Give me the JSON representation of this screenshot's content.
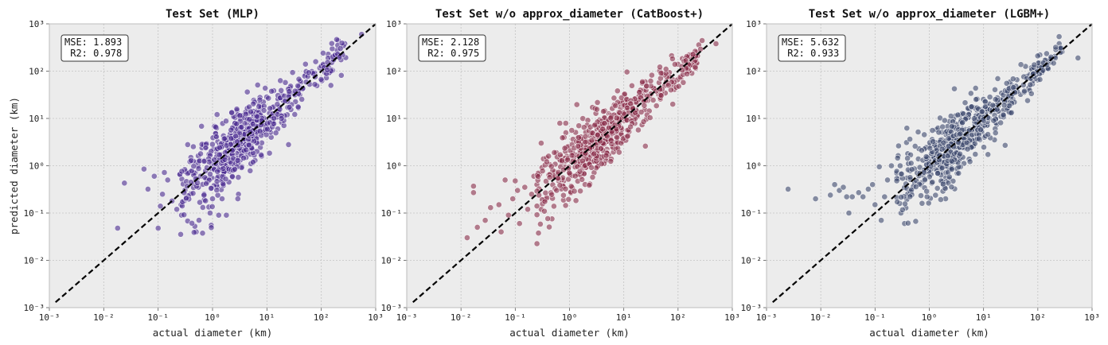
{
  "chart_data": [
    {
      "type": "scatter",
      "title": "Test Set (MLP)",
      "xlabel": "actual diameter (km)",
      "ylabel": "predicted diameter (km)",
      "xscale": "log",
      "yscale": "log",
      "xlim": [
        0.001,
        1000
      ],
      "ylim": [
        0.001,
        1000
      ],
      "grid": true,
      "color": "#4b2c91",
      "stats_box": [
        "MSE: 1.893",
        " R2: 0.978"
      ],
      "diagonal": {
        "x": [
          0.0013,
          1000
        ],
        "y": [
          0.0013,
          1000
        ],
        "style": "dashed",
        "color": "#000000"
      },
      "series": [
        {
          "outliers": [
            {
              "x": 0.018,
              "y": 0.048
            },
            {
              "x": 0.024,
              "y": 0.43
            },
            {
              "x": 0.055,
              "y": 0.85
            },
            {
              "x": 0.065,
              "y": 0.32
            },
            {
              "x": 0.085,
              "y": 0.6
            },
            {
              "x": 0.1,
              "y": 0.048
            },
            {
              "x": 0.11,
              "y": 0.14
            },
            {
              "x": 0.12,
              "y": 0.25
            },
            {
              "x": 0.15,
              "y": 0.5
            },
            {
              "x": 0.18,
              "y": 0.18
            },
            {
              "x": 0.22,
              "y": 0.12
            },
            {
              "x": 0.27,
              "y": 0.09
            },
            {
              "x": 0.3,
              "y": 0.18
            },
            {
              "x": 0.35,
              "y": 2.8
            },
            {
              "x": 0.4,
              "y": 1.5
            },
            {
              "x": 0.5,
              "y": 0.04
            },
            {
              "x": 0.55,
              "y": 0.35
            },
            {
              "x": 0.7,
              "y": 0.25
            },
            {
              "x": 0.9,
              "y": 0.1
            },
            {
              "x": 1.0,
              "y": 0.2
            },
            {
              "x": 1.3,
              "y": 0.09
            },
            {
              "x": 1.5,
              "y": 0.2
            },
            {
              "x": 1.8,
              "y": 0.09
            },
            {
              "x": 2.0,
              "y": 0.45
            },
            {
              "x": 1.2,
              "y": 0.55
            },
            {
              "x": 0.8,
              "y": 0.45
            },
            {
              "x": 25,
              "y": 2.8
            },
            {
              "x": 150,
              "y": 50
            },
            {
              "x": 550,
              "y": 600
            },
            {
              "x": 12,
              "y": 4
            },
            {
              "x": 8,
              "y": 1.6
            },
            {
              "x": 3,
              "y": 0.25
            },
            {
              "x": 0.25,
              "y": 0.65
            },
            {
              "x": 0.32,
              "y": 0.75
            },
            {
              "x": 0.13,
              "y": 0.72
            }
          ]
        }
      ]
    },
    {
      "type": "scatter",
      "title": "Test Set w/o approx_diameter (CatBoost+)",
      "xlabel": "actual diameter (km)",
      "ylabel": "",
      "xscale": "log",
      "yscale": "log",
      "xlim": [
        0.001,
        1000
      ],
      "ylim": [
        0.001,
        1000
      ],
      "grid": true,
      "color": "#8a2f4b",
      "stats_box": [
        "MSE: 2.128",
        " R2: 0.975"
      ],
      "diagonal": {
        "x": [
          0.0013,
          1000
        ],
        "y": [
          0.0013,
          1000
        ],
        "style": "dashed",
        "color": "#000000"
      },
      "series": [
        {
          "outliers": [
            {
              "x": 0.013,
              "y": 0.03
            },
            {
              "x": 0.017,
              "y": 0.37
            },
            {
              "x": 0.017,
              "y": 0.27
            },
            {
              "x": 0.02,
              "y": 0.05
            },
            {
              "x": 0.028,
              "y": 0.07
            },
            {
              "x": 0.035,
              "y": 0.13
            },
            {
              "x": 0.05,
              "y": 0.15
            },
            {
              "x": 0.055,
              "y": 0.04
            },
            {
              "x": 0.065,
              "y": 0.5
            },
            {
              "x": 0.075,
              "y": 0.09
            },
            {
              "x": 0.09,
              "y": 0.2
            },
            {
              "x": 0.11,
              "y": 0.3
            },
            {
              "x": 0.12,
              "y": 0.06
            },
            {
              "x": 0.15,
              "y": 0.35
            },
            {
              "x": 0.17,
              "y": 0.12
            },
            {
              "x": 0.2,
              "y": 0.25
            },
            {
              "x": 0.25,
              "y": 0.4
            },
            {
              "x": 0.3,
              "y": 3.0
            },
            {
              "x": 0.33,
              "y": 1.4
            },
            {
              "x": 0.3,
              "y": 0.12
            },
            {
              "x": 0.36,
              "y": 0.2
            },
            {
              "x": 25,
              "y": 2.6
            },
            {
              "x": 80,
              "y": 20
            },
            {
              "x": 180,
              "y": 90
            },
            {
              "x": 500,
              "y": 380
            },
            {
              "x": 5,
              "y": 1.5
            },
            {
              "x": 0.22,
              "y": 0.6
            },
            {
              "x": 0.1,
              "y": 0.48
            }
          ]
        }
      ]
    },
    {
      "type": "scatter",
      "title": "Test Set w/o approx_diameter (LGBM+)",
      "xlabel": "actual diameter (km)",
      "ylabel": "",
      "xscale": "log",
      "yscale": "log",
      "xlim": [
        0.001,
        1000
      ],
      "ylim": [
        0.001,
        1000
      ],
      "grid": true,
      "color": "#3e4a6e",
      "stats_box": [
        "MSE: 5.632",
        " R2: 0.933"
      ],
      "diagonal": {
        "x": [
          0.0013,
          1000
        ],
        "y": [
          0.0013,
          1000
        ],
        "style": "dashed",
        "color": "#000000"
      },
      "series": [
        {
          "outliers": [
            {
              "x": 0.0025,
              "y": 0.32
            },
            {
              "x": 0.008,
              "y": 0.2
            },
            {
              "x": 0.015,
              "y": 0.24
            },
            {
              "x": 0.018,
              "y": 0.4
            },
            {
              "x": 0.022,
              "y": 0.3
            },
            {
              "x": 0.026,
              "y": 0.35
            },
            {
              "x": 0.03,
              "y": 0.22
            },
            {
              "x": 0.033,
              "y": 0.1
            },
            {
              "x": 0.038,
              "y": 0.22
            },
            {
              "x": 0.05,
              "y": 0.27
            },
            {
              "x": 0.06,
              "y": 0.22
            },
            {
              "x": 0.075,
              "y": 0.32
            },
            {
              "x": 0.09,
              "y": 0.4
            },
            {
              "x": 0.1,
              "y": 0.15
            },
            {
              "x": 0.13,
              "y": 0.07
            },
            {
              "x": 0.15,
              "y": 0.22
            },
            {
              "x": 0.2,
              "y": 1.0
            },
            {
              "x": 0.25,
              "y": 0.7
            },
            {
              "x": 0.3,
              "y": 0.1
            },
            {
              "x": 0.35,
              "y": 0.06
            },
            {
              "x": 0.38,
              "y": 3.1
            },
            {
              "x": 0.4,
              "y": 1.8
            },
            {
              "x": 2.0,
              "y": 0.2
            },
            {
              "x": 25,
              "y": 2.7
            },
            {
              "x": 12,
              "y": 18
            },
            {
              "x": 550,
              "y": 190
            },
            {
              "x": 250,
              "y": 300
            },
            {
              "x": 0.12,
              "y": 0.95
            },
            {
              "x": 0.17,
              "y": 0.5
            }
          ]
        }
      ]
    }
  ]
}
